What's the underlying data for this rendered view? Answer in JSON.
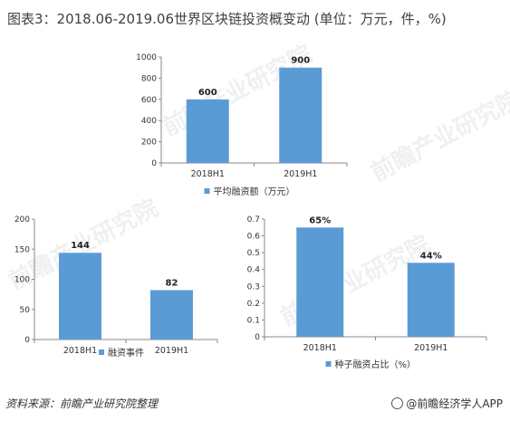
{
  "title": "图表3：2018.06-2019.06世界区块链投资概变动 (单位：万元，件，%)",
  "source": "资料来源：前瞻产业研究院整理",
  "brand": "@前瞻经济学人APP",
  "watermark": "前瞻产业研究院",
  "colors": {
    "bar": "#5B9BD5",
    "axis": "#888888",
    "text": "#333333"
  },
  "chart_data": [
    {
      "type": "bar",
      "categories": [
        "2018H1",
        "2019H1"
      ],
      "values": [
        600,
        900
      ],
      "data_labels": [
        "600",
        "900"
      ],
      "ylim": [
        0,
        1000
      ],
      "yticks": [
        "0",
        "200",
        "400",
        "600",
        "800",
        "1000"
      ],
      "legend": "平均融资额（万元）",
      "legend_position": "bottom"
    },
    {
      "type": "bar",
      "categories": [
        "2018H1",
        "2019H1"
      ],
      "values": [
        144,
        82
      ],
      "data_labels": [
        "144",
        "82"
      ],
      "ylim": [
        0,
        200
      ],
      "yticks": [
        "0",
        "50",
        "100",
        "150",
        "200"
      ],
      "legend": "融资事件",
      "legend_position": "bottom"
    },
    {
      "type": "bar",
      "categories": [
        "2018H1",
        "2019H1"
      ],
      "values": [
        0.65,
        0.44
      ],
      "data_labels": [
        "65%",
        "44%"
      ],
      "ylim": [
        0,
        0.7
      ],
      "yticks": [
        "0",
        "0.1",
        "0.2",
        "0.3",
        "0.4",
        "0.5",
        "0.6",
        "0.7"
      ],
      "legend": "种子融资占比（%）",
      "legend_position": "bottom"
    }
  ]
}
